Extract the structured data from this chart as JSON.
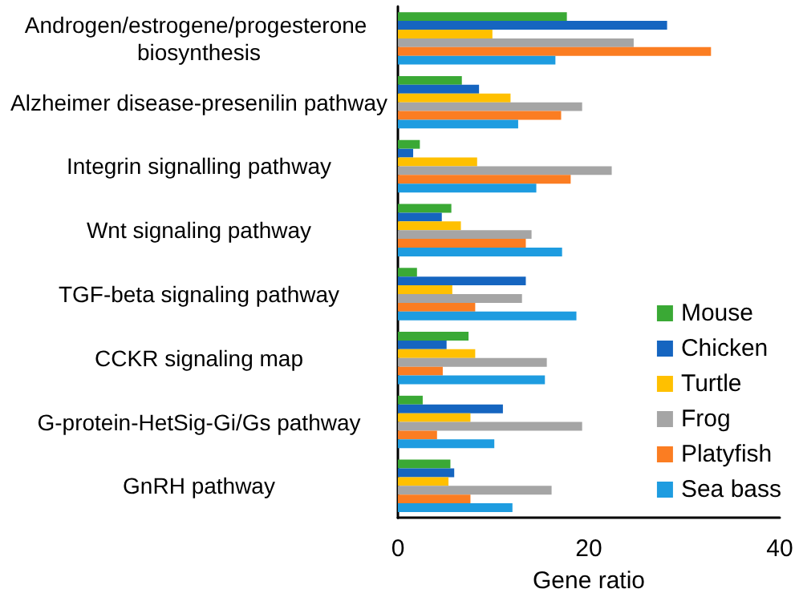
{
  "chart_data": {
    "type": "bar",
    "orientation": "horizontal",
    "xlabel": "Gene ratio",
    "categories": [
      "Androgen/estrogene/progesterone biosynthesis",
      "Alzheimer disease-presenilin pathway",
      "Integrin signalling pathway",
      "Wnt signaling pathway",
      "TGF-beta signaling pathway",
      "CCKR signaling map",
      "G-protein-HetSig-Gi/Gs pathway",
      "GnRH pathway"
    ],
    "series": [
      {
        "name": "Mouse",
        "color": "#3aa935",
        "values": [
          17.7,
          6.7,
          2.3,
          5.6,
          2.0,
          7.4,
          2.6,
          5.5
        ]
      },
      {
        "name": "Chicken",
        "color": "#1565c0",
        "values": [
          28.2,
          8.5,
          1.6,
          4.6,
          13.4,
          5.1,
          11.0,
          5.9
        ]
      },
      {
        "name": "Turtle",
        "color": "#ffc000",
        "values": [
          9.9,
          11.8,
          8.3,
          6.6,
          5.7,
          8.1,
          7.6,
          5.3
        ]
      },
      {
        "name": "Frog",
        "color": "#a5a5a5",
        "values": [
          24.7,
          19.3,
          22.4,
          14.0,
          13.0,
          15.6,
          19.3,
          16.1
        ]
      },
      {
        "name": "Platyfish",
        "color": "#fb7d22",
        "values": [
          32.8,
          17.1,
          18.1,
          13.4,
          8.1,
          4.7,
          4.1,
          7.6
        ]
      },
      {
        "name": "Sea bass",
        "color": "#1e9ce0",
        "values": [
          16.5,
          12.6,
          14.5,
          17.2,
          18.7,
          15.4,
          10.1,
          12.0
        ]
      }
    ],
    "xlim": [
      0,
      40
    ],
    "xticks": [
      0,
      20,
      40
    ],
    "grid": false,
    "legend": "right"
  }
}
